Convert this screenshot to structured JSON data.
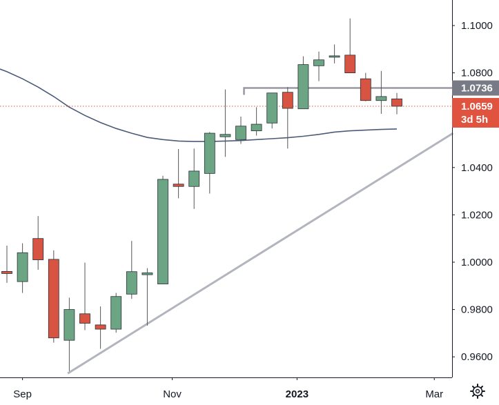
{
  "chart_data": {
    "type": "candlestick",
    "title": "",
    "xlabel": "",
    "ylabel": "",
    "ylim": [
      0.953,
      1.1075
    ],
    "y_ticks": [
      "1.1000",
      "1.0800",
      "1.0600",
      "1.0400",
      "1.0200",
      "1.0000",
      "0.9800",
      "0.9600"
    ],
    "x_ticks": [
      {
        "label": "Sep",
        "week": 1,
        "bold": false
      },
      {
        "label": "Nov",
        "week": 10.6,
        "bold": false
      },
      {
        "label": "2023",
        "week": 18.6,
        "bold": true
      },
      {
        "label": "Mar",
        "week": 27.4,
        "bold": false
      }
    ],
    "colors": {
      "up": "#6ba583",
      "down": "#d75442",
      "wick": "#555555",
      "moving_average": "#4a5a78",
      "trendline": "#b2b5be",
      "resistance": "#9598a1",
      "last_price": "#e0533f",
      "level_tag": "#787b86"
    },
    "candles": [
      {
        "week": 0,
        "open": 0.9961,
        "high": 1.007,
        "low": 0.9913,
        "close": 0.9952
      },
      {
        "week": 1,
        "open": 0.9918,
        "high": 1.008,
        "low": 0.987,
        "close": 1.004
      },
      {
        "week": 2,
        "open": 1.01,
        "high": 1.0195,
        "low": 0.9968,
        "close": 1.001
      },
      {
        "week": 3,
        "open": 1.0012,
        "high": 1.005,
        "low": 0.966,
        "close": 0.968
      },
      {
        "week": 4,
        "open": 0.967,
        "high": 0.985,
        "low": 0.954,
        "close": 0.98
      },
      {
        "week": 5,
        "open": 0.9782,
        "high": 0.9998,
        "low": 0.9713,
        "close": 0.9742
      },
      {
        "week": 6,
        "open": 0.9735,
        "high": 0.9813,
        "low": 0.9634,
        "close": 0.9717
      },
      {
        "week": 7,
        "open": 0.9717,
        "high": 0.987,
        "low": 0.9702,
        "close": 0.9855
      },
      {
        "week": 8,
        "open": 0.9865,
        "high": 1.009,
        "low": 0.9845,
        "close": 0.996
      },
      {
        "week": 9,
        "open": 0.9947,
        "high": 0.9975,
        "low": 0.9732,
        "close": 0.9955
      },
      {
        "week": 10,
        "open": 0.9908,
        "high": 1.0365,
        "low": 0.9908,
        "close": 1.035
      },
      {
        "week": 11,
        "open": 1.033,
        "high": 1.0478,
        "low": 1.027,
        "close": 1.032
      },
      {
        "week": 12,
        "open": 1.032,
        "high": 1.048,
        "low": 1.0225,
        "close": 1.0385
      },
      {
        "week": 13,
        "open": 1.0375,
        "high": 1.055,
        "low": 1.029,
        "close": 1.0545
      },
      {
        "week": 14,
        "open": 1.053,
        "high": 1.073,
        "low": 1.0445,
        "close": 1.054
      },
      {
        "week": 15,
        "open": 1.0518,
        "high": 1.0615,
        "low": 1.05,
        "close": 1.0575
      },
      {
        "week": 16,
        "open": 1.0555,
        "high": 1.0655,
        "low": 1.0535,
        "close": 1.0583
      },
      {
        "week": 17,
        "open": 1.0588,
        "high": 1.0713,
        "low": 1.0565,
        "close": 1.0715
      },
      {
        "week": 18,
        "open": 1.0718,
        "high": 1.074,
        "low": 1.048,
        "close": 1.065
      },
      {
        "week": 19,
        "open": 1.0648,
        "high": 1.087,
        "low": 1.0648,
        "close": 1.0835
      },
      {
        "week": 20,
        "open": 1.083,
        "high": 1.089,
        "low": 1.0765,
        "close": 1.0855
      },
      {
        "week": 21,
        "open": 1.0869,
        "high": 1.092,
        "low": 1.084,
        "close": 1.0872
      },
      {
        "week": 22,
        "open": 1.0875,
        "high": 1.103,
        "low": 1.08,
        "close": 1.08
      },
      {
        "week": 23,
        "open": 1.0775,
        "high": 1.08,
        "low": 1.068,
        "close": 1.0683
      },
      {
        "week": 24,
        "open": 1.0683,
        "high": 1.0808,
        "low": 1.0627,
        "close": 1.07
      },
      {
        "week": 25,
        "open": 1.069,
        "high": 1.0715,
        "low": 1.0625,
        "close": 1.0659
      }
    ],
    "moving_average": {
      "name": "",
      "points": [
        {
          "week": -1,
          "value": 1.083
        },
        {
          "week": 0,
          "value": 1.0805
        },
        {
          "week": 1,
          "value": 1.0775
        },
        {
          "week": 2,
          "value": 1.074
        },
        {
          "week": 3,
          "value": 1.07
        },
        {
          "week": 4,
          "value": 1.0655
        },
        {
          "week": 5,
          "value": 1.062
        },
        {
          "week": 6,
          "value": 1.059
        },
        {
          "week": 7,
          "value": 1.0565
        },
        {
          "week": 8,
          "value": 1.0545
        },
        {
          "week": 9,
          "value": 1.0527
        },
        {
          "week": 10,
          "value": 1.0518
        },
        {
          "week": 11,
          "value": 1.0512
        },
        {
          "week": 12,
          "value": 1.051
        },
        {
          "week": 13,
          "value": 1.051
        },
        {
          "week": 14,
          "value": 1.0512
        },
        {
          "week": 15,
          "value": 1.0514
        },
        {
          "week": 16,
          "value": 1.0518
        },
        {
          "week": 17,
          "value": 1.0522
        },
        {
          "week": 18,
          "value": 1.0526
        },
        {
          "week": 19,
          "value": 1.0532
        },
        {
          "week": 20,
          "value": 1.054
        },
        {
          "week": 21,
          "value": 1.055
        },
        {
          "week": 22,
          "value": 1.0555
        },
        {
          "week": 23,
          "value": 1.0558
        },
        {
          "week": 24,
          "value": 1.0561
        },
        {
          "week": 25,
          "value": 1.0563
        }
      ]
    },
    "trendline": {
      "start": {
        "week": 3.9,
        "value": 0.953
      },
      "end": {
        "week": 28.6,
        "value": 1.0545
      }
    },
    "resistance": {
      "start_week": 15.2,
      "value": 1.0736,
      "label": "1.0736"
    },
    "last_price": {
      "value": 1.0659,
      "label": "1.0659",
      "countdown": "3d 5h"
    }
  },
  "ui": {
    "settings_icon": "gear-icon"
  }
}
